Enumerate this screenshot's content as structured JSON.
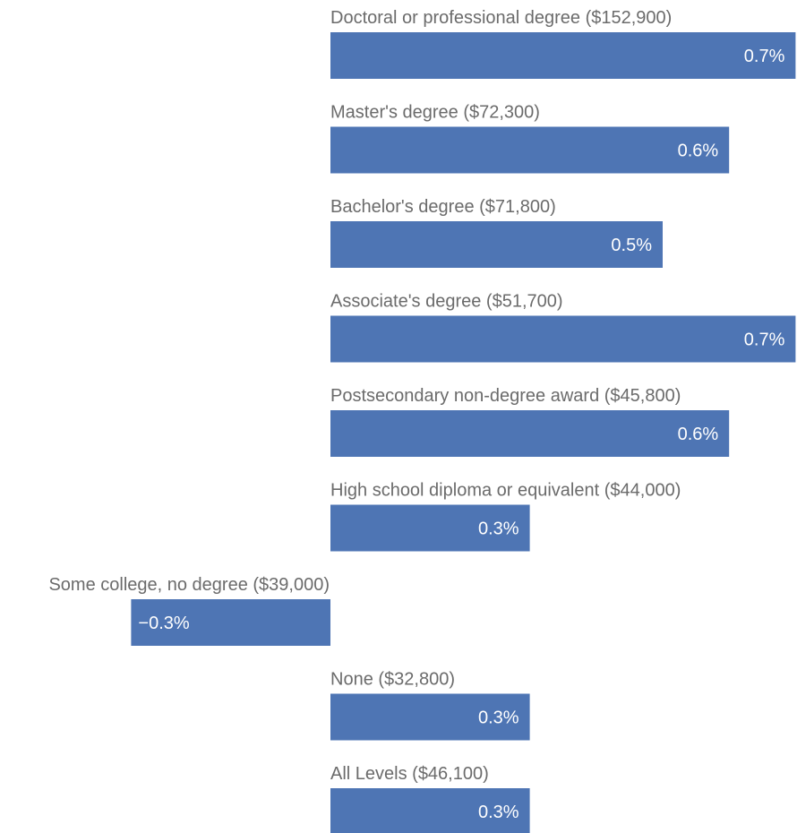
{
  "colors": {
    "bar": "#4e75b4",
    "label": "#6b6b6b",
    "value_text": "#ffffff",
    "background": "#ffffff"
  },
  "chart_data": {
    "type": "bar",
    "orientation": "horizontal",
    "title": "",
    "xlabel": "",
    "ylabel": "",
    "grid": false,
    "legend": "none",
    "categories": [
      "Doctoral or professional degree ($152,900)",
      "Master's degree ($72,300)",
      "Bachelor's degree ($71,800)",
      "Associate's degree ($51,700)",
      "Postsecondary non-degree award ($45,800)",
      "High school diploma or equivalent ($44,000)",
      "Some college, no degree ($39,000)",
      "None ($32,800)",
      "All Levels ($46,100)"
    ],
    "values": [
      0.7,
      0.6,
      0.5,
      0.7,
      0.6,
      0.3,
      -0.3,
      0.3,
      0.3
    ],
    "value_labels": [
      "0.7%",
      "0.6%",
      "0.5%",
      "0.7%",
      "0.6%",
      "0.3%",
      "−0.3%",
      "0.3%",
      "0.3%"
    ],
    "xlim": [
      -0.3,
      0.7
    ]
  }
}
